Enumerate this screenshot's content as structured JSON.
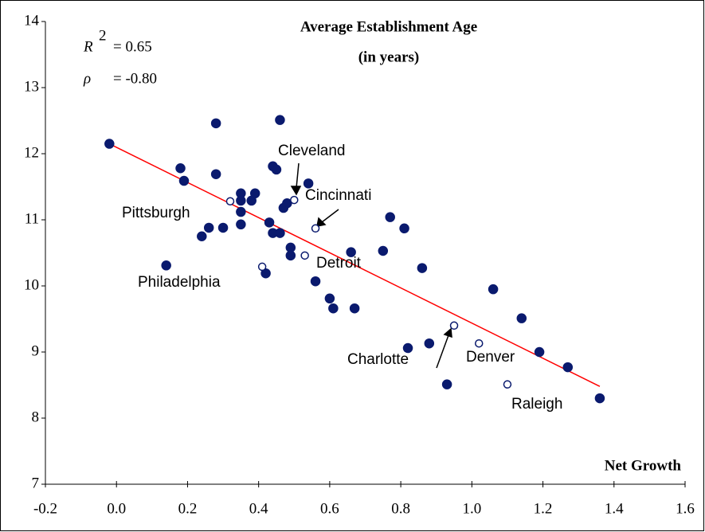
{
  "chart_data": {
    "type": "scatter",
    "title": [
      "Average Establishment Age",
      "(in years)"
    ],
    "x_label": "Net Growth",
    "stats": [
      {
        "symbol": "R",
        "sup": "2",
        "text": "= 0.65"
      },
      {
        "symbol": "ρ",
        "text": "= -0.80"
      }
    ],
    "xlim": [
      -0.2,
      1.6
    ],
    "xticks": [
      -0.2,
      {
        "value": 0,
        "label": "0.0"
      },
      0.2,
      0.4,
      0.6,
      0.8,
      {
        "value": 1,
        "label": "1.0"
      },
      1.2,
      1.4,
      1.6
    ],
    "ylim": [
      7,
      14
    ],
    "yticks": [
      7,
      8,
      9,
      10,
      11,
      12,
      13,
      14
    ],
    "series": [
      {
        "style": "filled",
        "color": "#0a1a6e",
        "x": [
          -0.02,
          0.28,
          0.46,
          0.18,
          0.19,
          0.28,
          0.35,
          0.39,
          0.35,
          0.38,
          0.35,
          0.3,
          0.26,
          0.24,
          0.35,
          0.43,
          0.44,
          0.45,
          0.47,
          0.48,
          0.54,
          0.44,
          0.46,
          0.49,
          0.49,
          0.42,
          0.14,
          0.56,
          0.6,
          0.61,
          0.67,
          0.66,
          0.75,
          0.77,
          0.81,
          0.86,
          0.88,
          0.82,
          0.93,
          1.06,
          1.14,
          1.19,
          1.27,
          1.36
        ],
        "values": [
          12.15,
          12.46,
          12.51,
          11.78,
          11.59,
          11.69,
          11.4,
          11.4,
          11.29,
          11.29,
          11.12,
          10.88,
          10.88,
          10.75,
          10.93,
          10.96,
          11.81,
          11.76,
          11.18,
          11.25,
          11.55,
          10.8,
          10.8,
          10.58,
          10.46,
          10.19,
          10.31,
          10.07,
          9.81,
          9.66,
          9.66,
          10.51,
          10.53,
          11.04,
          10.87,
          10.27,
          9.13,
          9.06,
          8.51,
          9.95,
          9.51,
          9.0,
          8.77,
          8.3
        ]
      },
      {
        "style": "open",
        "color": "#0a1a6e",
        "x": [
          0.32,
          0.5,
          0.56,
          0.53,
          0.41,
          0.95,
          1.02,
          1.1
        ],
        "values": [
          11.28,
          11.3,
          10.87,
          10.46,
          10.29,
          9.4,
          9.13,
          8.51
        ],
        "point_labels": [
          "Pittsburgh",
          "Cleveland",
          "Cincinnati",
          "Detroit",
          "Philadelphia",
          "Charlotte",
          "Denver",
          "Raleigh"
        ]
      }
    ],
    "trendline": {
      "color": "#ff0000",
      "x": [
        -0.02,
        1.36
      ],
      "values": [
        12.15,
        8.48
      ]
    }
  }
}
